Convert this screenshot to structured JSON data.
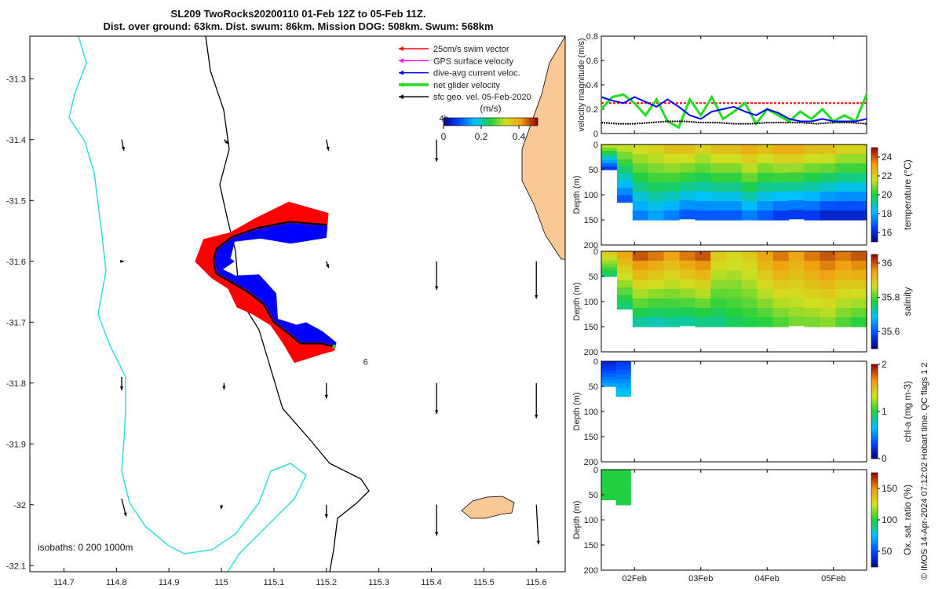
{
  "title": {
    "line1": "SL209 TwoRocks20200110 01-Feb 12Z to 05-Feb 11Z.",
    "line2": "Dist. over ground: 63km. Dist. swum: 86km. Mission DOG: 508km. Swum: 568km"
  },
  "credit": "© IMOS 14-Apr-2024 07:12:02 Hobart time. QC flags 1  2",
  "colors": {
    "coast": "#000000",
    "isobath": "#33dddd",
    "land": "#f9c895",
    "swim": "#ff0000",
    "gps": "#ff00ff",
    "current": "#0000ff",
    "net": "#22dd22",
    "sfc": "#000000"
  },
  "chart_data": [
    {
      "type": "map",
      "x_ticks": [
        "114.7",
        "114.8",
        "114.9",
        "115",
        "115.1",
        "115.2",
        "115.3",
        "115.4",
        "115.5",
        "115.6"
      ],
      "y_ticks": [
        "-31.3",
        "-31.4",
        "-31.5",
        "-31.6",
        "-31.7",
        "-31.8",
        "-31.9",
        "-32",
        "-32.1"
      ],
      "xlim": [
        114.635,
        115.655
      ],
      "ylim": [
        -32.11,
        -31.23
      ],
      "legend": [
        {
          "label": "25cm/s swim vector",
          "color": "#ff0000"
        },
        {
          "label": "GPS surface velocity",
          "color": "#ff00ff"
        },
        {
          "label": "dive-avg current veloc.",
          "color": "#0000ff"
        },
        {
          "label": "net glider velocity",
          "color": "#22dd22"
        },
        {
          "label": "sfc geo. vel. 05-Feb-2020",
          "color": "#000000"
        }
      ],
      "legend_position": "top-right",
      "colorbar": {
        "label": "(m/s)",
        "ticks": [
          "0",
          "0.2",
          "0.4"
        ],
        "range": [
          0,
          0.5
        ]
      },
      "annotations": [
        {
          "text": "4h",
          "lon": 115.415,
          "lat": -31.37
        },
        {
          "text": "6",
          "lon": 115.27,
          "lat": -31.77
        }
      ],
      "isobaths_label": "isobaths: 0   200  1000m",
      "track": [
        [
          115.2,
          -31.54
        ],
        [
          115.13,
          -31.535
        ],
        [
          115.07,
          -31.545
        ],
        [
          115.02,
          -31.56
        ],
        [
          114.99,
          -31.58
        ],
        [
          114.985,
          -31.6
        ],
        [
          114.99,
          -31.62
        ],
        [
          115.02,
          -31.635
        ],
        [
          115.05,
          -31.65
        ],
        [
          115.08,
          -31.67
        ],
        [
          115.1,
          -31.7
        ],
        [
          115.13,
          -31.72
        ],
        [
          115.15,
          -31.735
        ],
        [
          115.19,
          -31.735
        ],
        [
          115.215,
          -31.74
        ]
      ],
      "geo_vectors": [
        {
          "lon": 114.81,
          "lat": -31.4,
          "u": 0.01,
          "v": -0.05
        },
        {
          "lon": 115.005,
          "lat": -31.4,
          "u": 0.02,
          "v": -0.02
        },
        {
          "lon": 115.2,
          "lat": -31.4,
          "u": 0.01,
          "v": -0.05
        },
        {
          "lon": 115.41,
          "lat": -31.4,
          "u": 0.0,
          "v": -0.1
        },
        {
          "lon": 114.81,
          "lat": -31.6,
          "u": 0.01,
          "v": 0.0
        },
        {
          "lon": 115.2,
          "lat": -31.6,
          "u": 0.01,
          "v": -0.03
        },
        {
          "lon": 115.41,
          "lat": -31.6,
          "u": 0.0,
          "v": -0.13
        },
        {
          "lon": 115.6,
          "lat": -31.6,
          "u": 0.0,
          "v": -0.17
        },
        {
          "lon": 114.81,
          "lat": -31.79,
          "u": 0.0,
          "v": -0.06
        },
        {
          "lon": 115.005,
          "lat": -31.8,
          "u": 0.0,
          "v": -0.03
        },
        {
          "lon": 115.2,
          "lat": -31.8,
          "u": 0.0,
          "v": -0.07
        },
        {
          "lon": 115.41,
          "lat": -31.8,
          "u": 0.0,
          "v": -0.14
        },
        {
          "lon": 115.6,
          "lat": -31.8,
          "u": 0.0,
          "v": -0.16
        },
        {
          "lon": 114.81,
          "lat": -31.99,
          "u": 0.02,
          "v": -0.08
        },
        {
          "lon": 115.0,
          "lat": -32.0,
          "u": 0.0,
          "v": -0.02
        },
        {
          "lon": 115.2,
          "lat": -32.0,
          "u": 0.0,
          "v": -0.06
        },
        {
          "lon": 115.41,
          "lat": -32.0,
          "u": 0.0,
          "v": -0.14
        },
        {
          "lon": 115.6,
          "lat": -32.0,
          "u": 0.01,
          "v": -0.18
        }
      ]
    },
    {
      "type": "line",
      "ylabel": "velocity magnitude (m/s)",
      "ylim": [
        0,
        0.8
      ],
      "y_ticks": [
        "0",
        "0.2",
        "0.4",
        "0.6",
        "0.8"
      ],
      "series": [
        {
          "color": "#ff0000",
          "values": [
            0.25,
            0.25,
            0.25,
            0.25,
            0.25,
            0.25,
            0.25,
            0.25,
            0.25
          ]
        },
        {
          "color": "#22dd22",
          "values": [
            0.2,
            0.3,
            0.32,
            0.25,
            0.15,
            0.28,
            0.1,
            0.05,
            0.28,
            0.15,
            0.3,
            0.12,
            0.18,
            0.25,
            0.08,
            0.2,
            0.15,
            0.1,
            0.18,
            0.12,
            0.2,
            0.1,
            0.15,
            0.1,
            0.32
          ]
        },
        {
          "color": "#0000ff",
          "values": [
            0.3,
            0.27,
            0.25,
            0.3,
            0.26,
            0.22,
            0.28,
            0.22,
            0.15,
            0.12,
            0.18,
            0.2,
            0.22,
            0.18,
            0.15,
            0.2,
            0.17,
            0.12,
            0.1,
            0.1,
            0.12,
            0.1,
            0.1,
            0.1,
            0.12
          ]
        },
        {
          "color": "#000000",
          "values": [
            0.09,
            0.08,
            0.08,
            0.09,
            0.1,
            0.1,
            0.09,
            0.09,
            0.08,
            0.08,
            0.09,
            0.09,
            0.09,
            0.08,
            0.09,
            0.09,
            0.08
          ]
        }
      ]
    },
    {
      "type": "heatmap",
      "ylabel": "Depth (m)",
      "colorbar_label": "temperature (°C)",
      "ylim": [
        200,
        0
      ],
      "y_ticks": [
        "0",
        "50",
        "100",
        "150",
        "200"
      ],
      "colorbar_ticks": [
        "16",
        "18",
        "20",
        "22",
        "24"
      ],
      "clim": [
        15,
        25
      ],
      "bottom_depth": [
        0,
        50,
        115,
        150,
        150,
        148,
        145,
        150,
        150,
        150,
        150,
        150,
        148,
        145,
        150,
        150,
        150,
        148
      ],
      "surface": [
        21.5,
        21.5,
        21.8,
        22,
        22.5,
        22.5,
        22,
        22.5,
        22.5,
        23,
        22.5,
        23,
        23,
        22.5,
        22.5,
        22,
        22,
        22
      ],
      "deep": [
        16.5,
        17,
        17.5,
        18,
        17.5,
        17,
        17,
        17,
        17,
        17.5,
        17,
        16.5,
        16.5,
        16.5,
        16,
        16,
        16,
        16
      ]
    },
    {
      "type": "heatmap",
      "ylabel": "Depth (m)",
      "colorbar_label": "salinity",
      "ylim": [
        200,
        0
      ],
      "y_ticks": [
        "0",
        "50",
        "100",
        "150",
        "200"
      ],
      "colorbar_ticks": [
        "35.6",
        "35.8",
        "36"
      ],
      "clim": [
        35.5,
        36.05
      ],
      "bottom_depth": [
        0,
        50,
        115,
        150,
        150,
        148,
        145,
        150,
        150,
        150,
        150,
        150,
        148,
        145,
        150,
        150,
        150,
        148
      ],
      "surface": [
        35.9,
        35.95,
        36.0,
        35.98,
        35.95,
        35.98,
        36.0,
        35.9,
        35.88,
        35.9,
        35.95,
        35.98,
        35.95,
        35.98,
        36.0,
        35.98,
        36.0,
        36.0
      ],
      "deep": [
        35.75,
        35.75,
        35.73,
        35.72,
        35.73,
        35.73,
        35.74,
        35.74,
        35.76,
        35.77,
        35.78,
        35.8,
        35.82,
        35.82,
        35.83,
        35.8,
        35.78,
        35.75
      ]
    },
    {
      "type": "heatmap",
      "ylabel": "Depth (m)",
      "colorbar_label": "chl-a (mg m-3)",
      "ylim": [
        200,
        0
      ],
      "y_ticks": [
        "0",
        "50",
        "100",
        "150",
        "200"
      ],
      "colorbar_ticks": [
        "0",
        "1",
        "2"
      ],
      "clim": [
        0,
        2
      ],
      "bottom_depth": [
        0,
        50,
        70
      ],
      "surface": [
        0.2,
        0.3,
        0.3
      ],
      "deep": [
        0.6,
        0.7,
        0.8
      ]
    },
    {
      "type": "heatmap",
      "ylabel": "Depth (m)",
      "colorbar_label": "Ox. sat. ratio (%)",
      "ylim": [
        200,
        0
      ],
      "y_ticks": [
        "0",
        "50",
        "100",
        "150",
        "200"
      ],
      "colorbar_ticks": [
        "50",
        "100",
        "150"
      ],
      "clim": [
        25,
        175
      ],
      "bottom_depth": [
        0,
        60,
        70
      ],
      "surface": [
        100,
        100,
        100
      ],
      "deep": [
        100,
        100,
        100
      ]
    }
  ],
  "time_axis": {
    "ticks": [
      "02Feb",
      "03Feb",
      "04Feb",
      "05Feb"
    ],
    "tick_frac": [
      0.125,
      0.375,
      0.625,
      0.875
    ]
  }
}
